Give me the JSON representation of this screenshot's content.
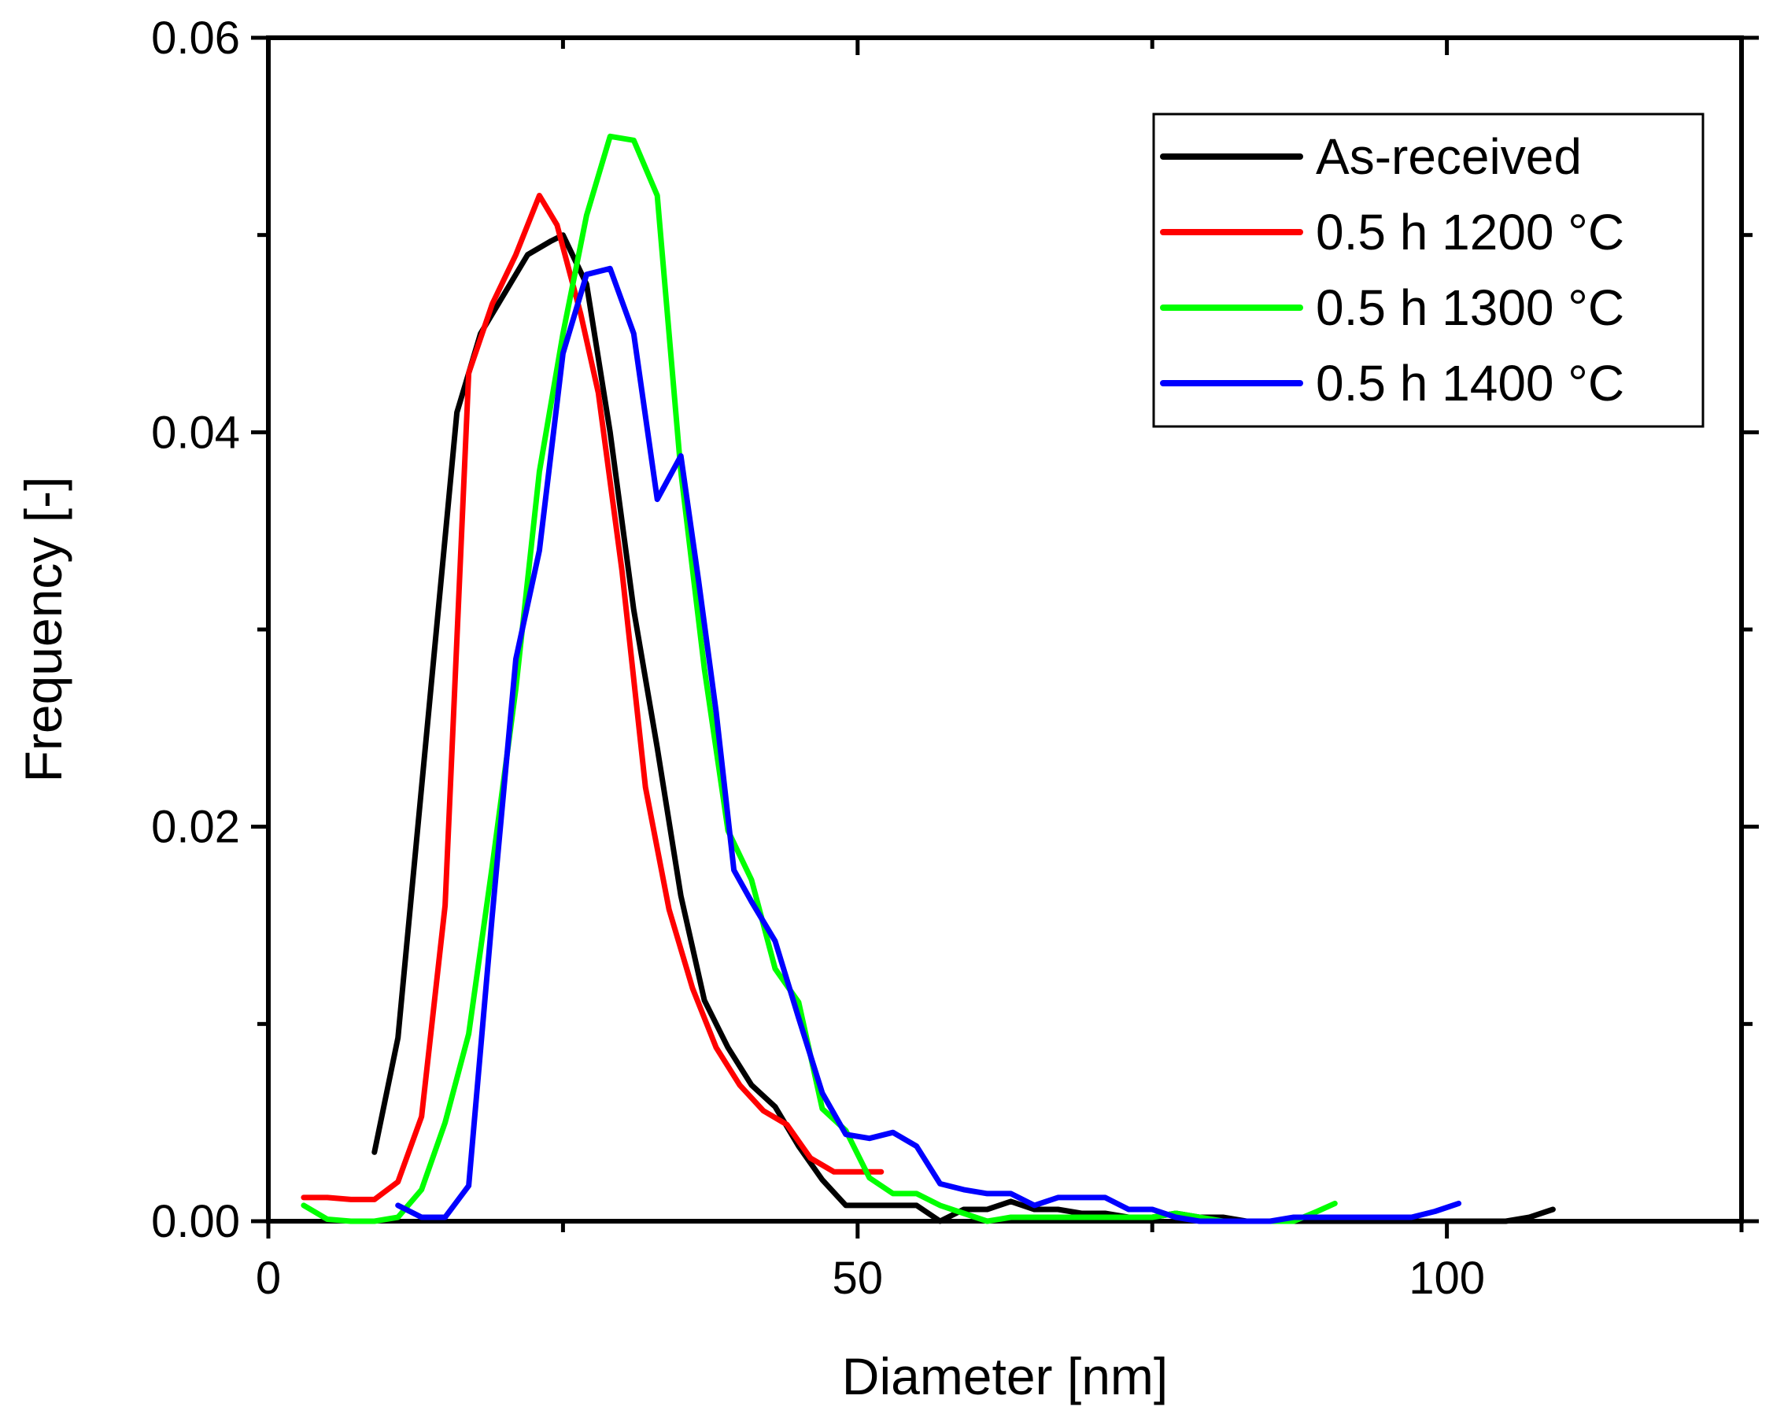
{
  "chart_data": {
    "type": "line",
    "xlabel": "Diameter [nm]",
    "ylabel": "Frequency [-]",
    "xlim": [
      0,
      125
    ],
    "ylim": [
      0,
      0.06
    ],
    "x_ticks": [
      0,
      50,
      100
    ],
    "x_tick_labels": [
      "0",
      "50",
      "100"
    ],
    "x_minor_ticks": [
      25,
      75,
      125
    ],
    "y_ticks": [
      0,
      0.02,
      0.04,
      0.06
    ],
    "y_tick_labels": [
      "0.00",
      "0.02",
      "0.04",
      "0.06"
    ],
    "y_minor_ticks": [
      0.01,
      0.03,
      0.05
    ],
    "grid": false,
    "legend_position": "top-right",
    "series": [
      {
        "name": "As-received",
        "color": "#000000",
        "x": [
          9,
          11,
          13,
          16,
          18,
          20,
          22,
          24,
          25,
          27,
          29,
          31,
          33,
          35,
          37,
          39,
          41,
          43,
          45,
          47,
          49,
          51,
          53,
          55,
          57,
          59,
          61,
          63,
          65,
          67,
          69,
          71,
          73,
          75,
          77,
          79,
          81,
          83,
          85,
          87,
          89,
          91,
          93,
          95,
          97,
          99,
          101,
          103,
          105,
          107,
          109
        ],
        "y": [
          0.0035,
          0.0093,
          0.022,
          0.041,
          0.045,
          0.047,
          0.049,
          0.0497,
          0.05,
          0.0475,
          0.04,
          0.031,
          0.024,
          0.0165,
          0.0112,
          0.0088,
          0.0069,
          0.0058,
          0.0038,
          0.0021,
          0.0008,
          0.0008,
          0.0008,
          0.0008,
          0.0,
          0.0006,
          0.0006,
          0.001,
          0.0006,
          0.0006,
          0.0004,
          0.0004,
          0.0002,
          0.0002,
          0.0004,
          0.0002,
          0.0002,
          0.0,
          0.0,
          0.0,
          0.0,
          0.0,
          0.0,
          0.0,
          0.0,
          0.0,
          0.0,
          0.0,
          0.0,
          0.0002,
          0.0006
        ]
      },
      {
        "name": "0.5 h 1200 °C",
        "color": "#ff0000",
        "x": [
          3,
          5,
          7,
          9,
          11,
          13,
          15,
          17,
          19,
          21,
          23,
          24.5,
          26.5,
          28,
          30,
          32,
          34,
          36,
          38,
          40,
          42,
          44,
          46,
          48,
          50,
          52
        ],
        "y": [
          0.0012,
          0.0012,
          0.0011,
          0.0011,
          0.002,
          0.0053,
          0.016,
          0.043,
          0.0465,
          0.049,
          0.052,
          0.0505,
          0.046,
          0.042,
          0.033,
          0.022,
          0.0158,
          0.0118,
          0.0088,
          0.0069,
          0.0056,
          0.0049,
          0.0032,
          0.0025,
          0.0025,
          0.0025
        ]
      },
      {
        "name": "0.5 h 1300 °C",
        "color": "#00ff00",
        "x": [
          3,
          5,
          7,
          9,
          11,
          13,
          15,
          17,
          19,
          21,
          23,
          25,
          27,
          29,
          31,
          33,
          35,
          37,
          39,
          41,
          43,
          45,
          47,
          49,
          51,
          53,
          55,
          57,
          59,
          61,
          63,
          65,
          67,
          69,
          71,
          73,
          75,
          77,
          79,
          81,
          83,
          85,
          87,
          89,
          90.5
        ],
        "y": [
          0.0008,
          0.0001,
          0.0,
          0.0,
          0.0002,
          0.0016,
          0.005,
          0.0095,
          0.018,
          0.027,
          0.038,
          0.045,
          0.051,
          0.055,
          0.0548,
          0.052,
          0.038,
          0.028,
          0.0198,
          0.0173,
          0.0128,
          0.0111,
          0.0057,
          0.0046,
          0.0022,
          0.0014,
          0.0014,
          0.0008,
          0.0004,
          0.0,
          0.0002,
          0.0002,
          0.0002,
          0.0002,
          0.0002,
          0.0002,
          0.0002,
          0.0004,
          0.0002,
          0.0,
          0.0,
          0.0,
          0.0,
          0.0005,
          0.0009
        ]
      },
      {
        "name": "0.5 h 1400 °C",
        "color": "#0000ff",
        "x": [
          11,
          13,
          15,
          17,
          19,
          21,
          23,
          25,
          27,
          29,
          31,
          33,
          35,
          36.5,
          38,
          39.5,
          41,
          43,
          45,
          47,
          49,
          51,
          53,
          55,
          57,
          59,
          61,
          63,
          65,
          67,
          69,
          71,
          73,
          75,
          77,
          79,
          81,
          83,
          85,
          87,
          89,
          91,
          93,
          95,
          97,
          99,
          101
        ],
        "y": [
          0.0008,
          0.0002,
          0.0002,
          0.0018,
          0.0155,
          0.0285,
          0.034,
          0.044,
          0.048,
          0.0483,
          0.045,
          0.0366,
          0.0388,
          0.0325,
          0.0258,
          0.0178,
          0.0162,
          0.0142,
          0.0103,
          0.0065,
          0.0044,
          0.0042,
          0.0045,
          0.0038,
          0.0019,
          0.0016,
          0.0014,
          0.0014,
          0.0008,
          0.0012,
          0.0012,
          0.0012,
          0.0006,
          0.0006,
          0.0002,
          0.0,
          0.0,
          0.0,
          0.0,
          0.0002,
          0.0002,
          0.0002,
          0.0002,
          0.0002,
          0.0002,
          0.0005,
          0.0009
        ]
      }
    ]
  }
}
